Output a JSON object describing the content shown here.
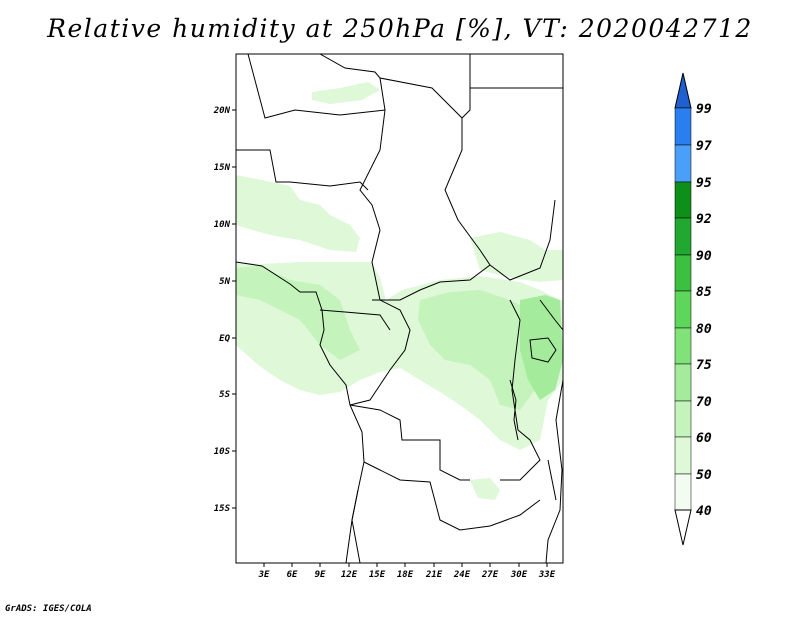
{
  "title": "Relative humidity at 250hPa [%], VT: 2020042712",
  "credit": "GrADS: IGES/COLA",
  "map": {
    "x_ticks": [
      "3E",
      "6E",
      "9E",
      "12E",
      "15E",
      "18E",
      "21E",
      "24E",
      "27E",
      "30E",
      "33E"
    ],
    "y_ticks": [
      "20N",
      "15N",
      "10N",
      "5N",
      "EQ",
      "5S",
      "10S",
      "15S"
    ],
    "colors": {
      "coast": "#000000",
      "border": "#000000"
    }
  },
  "colorbar": {
    "levels": [
      "99",
      "97",
      "95",
      "92",
      "90",
      "85",
      "80",
      "75",
      "70",
      "60",
      "50",
      "40"
    ],
    "colors": [
      "#1f5fd0",
      "#2a7ff0",
      "#4aa0f8",
      "#0e8f1a",
      "#20a830",
      "#3cc040",
      "#5ed65c",
      "#82e27a",
      "#a4ec9c",
      "#c4f4bc",
      "#def8d8",
      "#f2fcf0",
      "#ffffff"
    ]
  }
}
